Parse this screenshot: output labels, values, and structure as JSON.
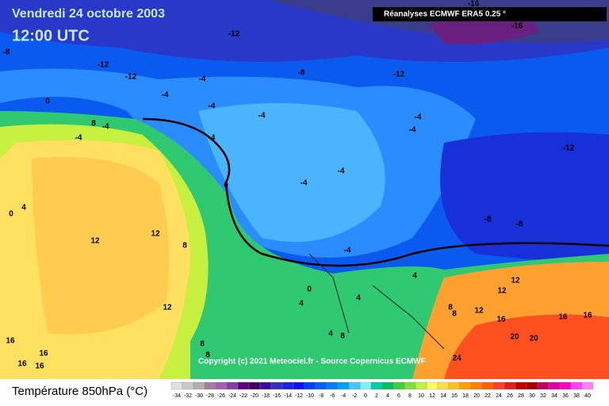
{
  "header": {
    "title": "Vendredi 24 octobre 2003",
    "time": "12:00 UTC",
    "source": "Réanalyses ECMWF ERA5 0.25 °",
    "copyright": "Copyright (c) 2021 Meteociel.fr - Source Copernicus ECMWF"
  },
  "map": {
    "contour_labels": [
      -16,
      -16,
      -12,
      -8,
      -12,
      -12,
      -4,
      -8,
      -12,
      -4,
      0,
      -4,
      -4,
      -4,
      8,
      -4,
      -4,
      -4,
      -4,
      -12,
      -4,
      -4,
      0,
      4,
      0,
      -8,
      -8,
      12,
      12,
      8,
      -4,
      4,
      12,
      12,
      0,
      4,
      4,
      8,
      8,
      12,
      12,
      16,
      16,
      16,
      4,
      8,
      20,
      20,
      16,
      16,
      8,
      8,
      16,
      16,
      24
    ]
  },
  "legend": {
    "title": "Température 850hPa (°C)",
    "ticks": [
      -34,
      -32,
      -30,
      -28,
      -26,
      -24,
      -22,
      -20,
      -18,
      -16,
      -14,
      -12,
      -10,
      -8,
      -6,
      -4,
      -2,
      0,
      2,
      4,
      6,
      8,
      10,
      12,
      14,
      16,
      18,
      20,
      22,
      24,
      26,
      28,
      30,
      32,
      34,
      36,
      38,
      40
    ],
    "colors": [
      "#e0e0e0",
      "#c8c8c8",
      "#b0b0b0",
      "#a080a0",
      "#a060b0",
      "#8040a0",
      "#600080",
      "#400060",
      "#3c0ca0",
      "#3030c0",
      "#2020e0",
      "#1010ff",
      "#0040ff",
      "#0060ff",
      "#0080ff",
      "#00a0ff",
      "#40c8ff",
      "#80f0ff",
      "#00d0a0",
      "#00c060",
      "#40d040",
      "#80e040",
      "#c0f040",
      "#ffff60",
      "#ffe040",
      "#ffc020",
      "#ffa000",
      "#ff8000",
      "#ff6000",
      "#ff4020",
      "#e02020",
      "#c00000",
      "#a00000",
      "#c00060",
      "#e000a0",
      "#ff00c0",
      "#ff40ff",
      "#ff80ff"
    ]
  }
}
